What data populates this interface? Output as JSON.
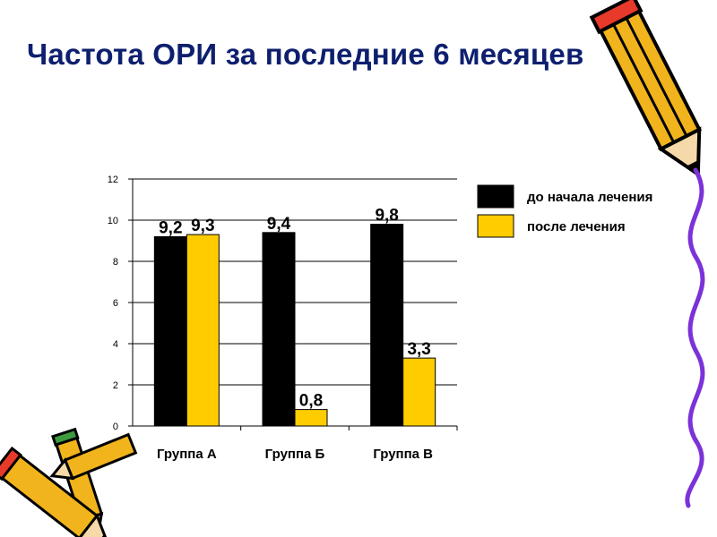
{
  "slide": {
    "title": "Частота ОРИ за последние 6 месяцев"
  },
  "colors": {
    "title": "#0d1f6e",
    "series_before": "#000000",
    "series_after": "#ffcc00",
    "squiggle": "#7b32d8",
    "pencil_body": "#f2b41c",
    "pencil_tip": "#e83a2a"
  },
  "icons": [
    "pencil-icon",
    "pencils-bundle-icon",
    "squiggle-decoration"
  ],
  "chart_data": {
    "type": "bar",
    "title": "",
    "xlabel": "",
    "ylabel": "",
    "categories": [
      "Группа А",
      "Группа Б",
      "Группа В"
    ],
    "series": [
      {
        "name": "до начала лечения",
        "values": [
          9.2,
          9.4,
          9.8
        ],
        "labels": [
          "9,2",
          "9,4",
          "9,8"
        ]
      },
      {
        "name": "после лечения",
        "values": [
          9.3,
          0.8,
          3.3
        ],
        "labels": [
          "9,3",
          "0,8",
          "3,3"
        ]
      }
    ],
    "ylim": [
      0,
      12
    ],
    "yticks": [
      0,
      2,
      4,
      6,
      8,
      10,
      12
    ],
    "grid": true,
    "legend_position": "right"
  }
}
